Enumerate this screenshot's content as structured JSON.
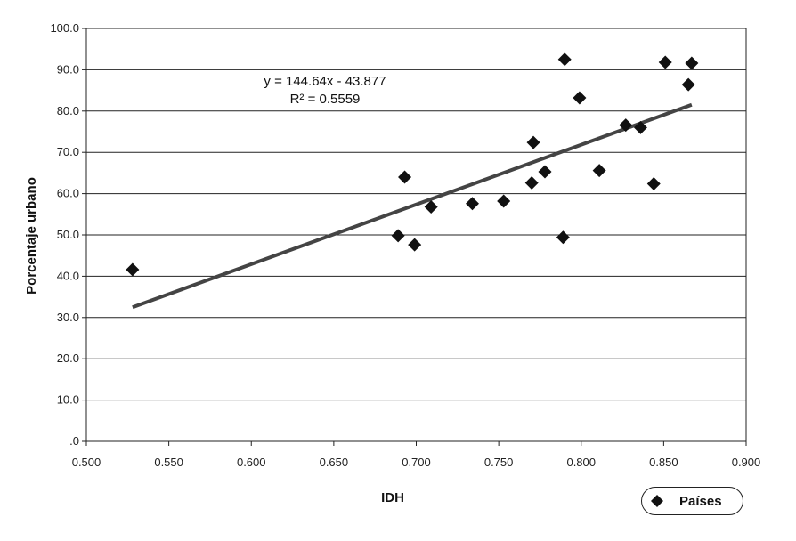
{
  "chart_data": {
    "type": "scatter",
    "xlabel": "IDH",
    "ylabel": "Porcentaje urbano",
    "xlim": [
      0.5,
      0.9
    ],
    "ylim": [
      0,
      100
    ],
    "x_ticks": [
      "0.500",
      "0.550",
      "0.600",
      "0.650",
      "0.700",
      "0.750",
      "0.800",
      "0.850",
      "0.900"
    ],
    "y_ticks": [
      ".0",
      "10.0",
      "20.0",
      "30.0",
      "40.0",
      "50.0",
      "60.0",
      "70.0",
      "80.0",
      "90.0",
      "100.0"
    ],
    "grid": "horizontal",
    "legend_position": "bottom-right",
    "series": [
      {
        "name": "Países",
        "marker": "diamond",
        "color": "#111111",
        "points": [
          {
            "x": 0.528,
            "y": 41.6
          },
          {
            "x": 0.689,
            "y": 49.8
          },
          {
            "x": 0.693,
            "y": 64.0
          },
          {
            "x": 0.699,
            "y": 47.6
          },
          {
            "x": 0.709,
            "y": 56.8
          },
          {
            "x": 0.734,
            "y": 57.6
          },
          {
            "x": 0.753,
            "y": 58.2
          },
          {
            "x": 0.77,
            "y": 62.6
          },
          {
            "x": 0.771,
            "y": 72.4
          },
          {
            "x": 0.778,
            "y": 65.3
          },
          {
            "x": 0.789,
            "y": 49.4
          },
          {
            "x": 0.79,
            "y": 92.5
          },
          {
            "x": 0.799,
            "y": 83.2
          },
          {
            "x": 0.811,
            "y": 65.6
          },
          {
            "x": 0.827,
            "y": 76.6
          },
          {
            "x": 0.836,
            "y": 76.0
          },
          {
            "x": 0.844,
            "y": 62.4
          },
          {
            "x": 0.851,
            "y": 91.8
          },
          {
            "x": 0.865,
            "y": 86.4
          },
          {
            "x": 0.867,
            "y": 91.6
          }
        ]
      }
    ],
    "trendline": {
      "slope": 144.64,
      "intercept": -43.877,
      "x_range": [
        0.528,
        0.867
      ],
      "color": "#444444",
      "equation": "y = 144.64x - 43.877",
      "r_squared": "R² = 0.5559"
    }
  },
  "legend": {
    "label": "Países"
  }
}
